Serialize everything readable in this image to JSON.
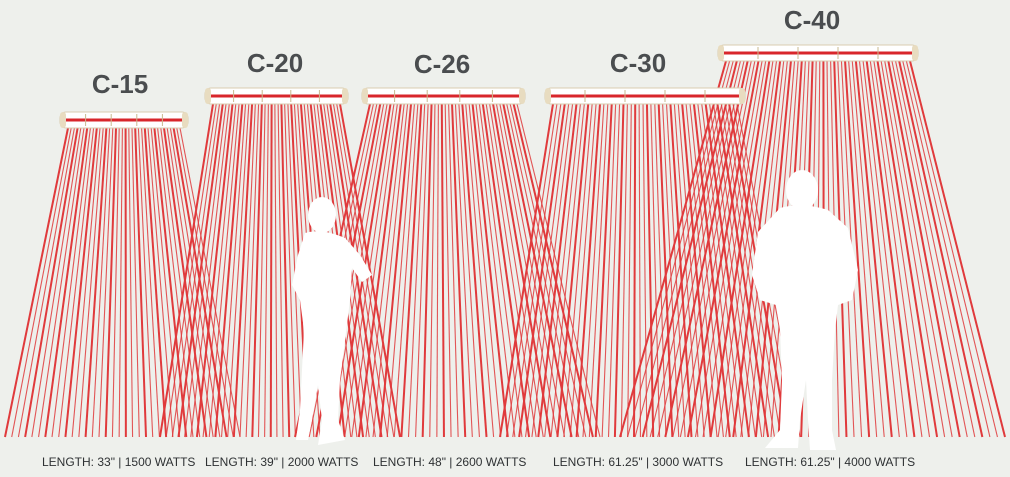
{
  "heaters": [
    {
      "name": "C-15",
      "spec": "LENGTH: 33\" | 1500 WATTS"
    },
    {
      "name": "C-20",
      "spec": "LENGTH: 39\" | 2000 WATTS"
    },
    {
      "name": "C-26",
      "spec": "LENGTH: 48\" | 2600 WATTS"
    },
    {
      "name": "C-30",
      "spec": "LENGTH: 61.25\" | 3000 WATTS"
    },
    {
      "name": "C-40",
      "spec": "LENGTH: 61.25\" | 4000 WATTS"
    }
  ]
}
